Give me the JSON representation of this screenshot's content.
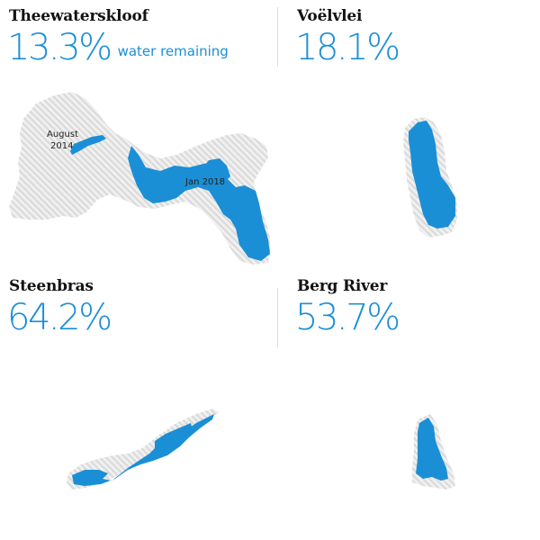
{
  "suffix": "water remaining",
  "dams": [
    {
      "name": "Theewaterskloof",
      "pct": "13.3%",
      "level": 13.3
    },
    {
      "name": "Voëlvlei",
      "pct": "18.1%",
      "level": 18.1
    },
    {
      "name": "Steenbras",
      "pct": "64.2%",
      "level": 64.2
    },
    {
      "name": "Berg River",
      "pct": "53.7%",
      "level": 53.7
    }
  ],
  "annotations": {
    "past_line1": "August",
    "past_line2": "2014",
    "current": "Jan 2018"
  },
  "colors": {
    "water": "#1b8fd6",
    "extent_hatch": "#e2e2e2",
    "text": "#121212"
  }
}
